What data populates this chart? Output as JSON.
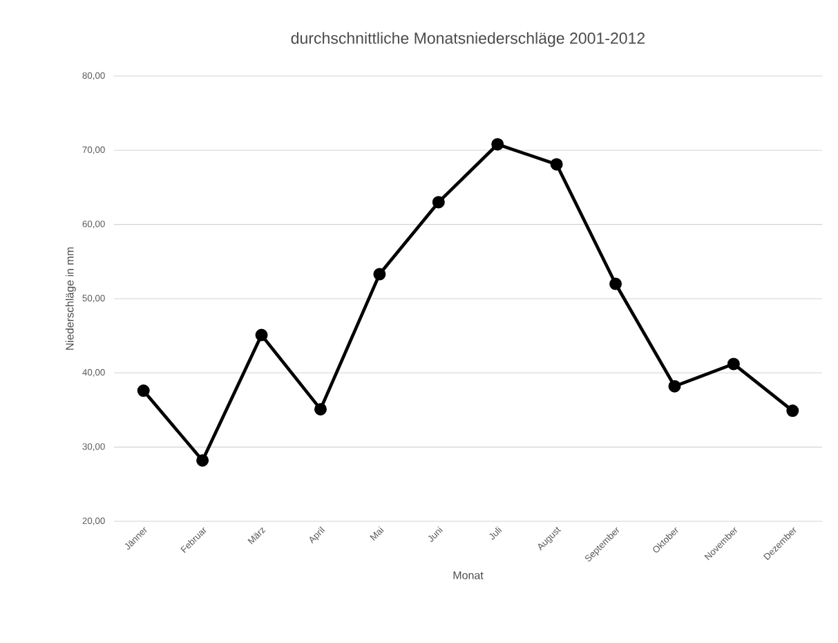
{
  "chart_data": {
    "type": "line",
    "title": "durchschnittliche Monatsniederschläge 2001-2012",
    "xlabel": "Monat",
    "ylabel": "Niederschläge in mm",
    "categories": [
      "Jänner",
      "Februar",
      "März",
      "April",
      "Mai",
      "Juni",
      "Juli",
      "August",
      "September",
      "Oktober",
      "November",
      "Dezember"
    ],
    "series": [
      {
        "color": "#000000",
        "values": [
          37.6,
          28.2,
          45.1,
          35.1,
          53.3,
          63.0,
          70.8,
          68.1,
          52.0,
          38.2,
          41.2,
          34.9
        ]
      }
    ],
    "ylim": [
      20,
      80
    ],
    "yticks": [
      {
        "value": 20,
        "label": "20,00"
      },
      {
        "value": 30,
        "label": "30,00"
      },
      {
        "value": 40,
        "label": "40,00"
      },
      {
        "value": 50,
        "label": "50,00"
      },
      {
        "value": 60,
        "label": "60,00"
      },
      {
        "value": 70,
        "label": "70,00"
      },
      {
        "value": 80,
        "label": "80,00"
      }
    ],
    "grid": "y",
    "marker": "circle",
    "line_style": "solid"
  }
}
